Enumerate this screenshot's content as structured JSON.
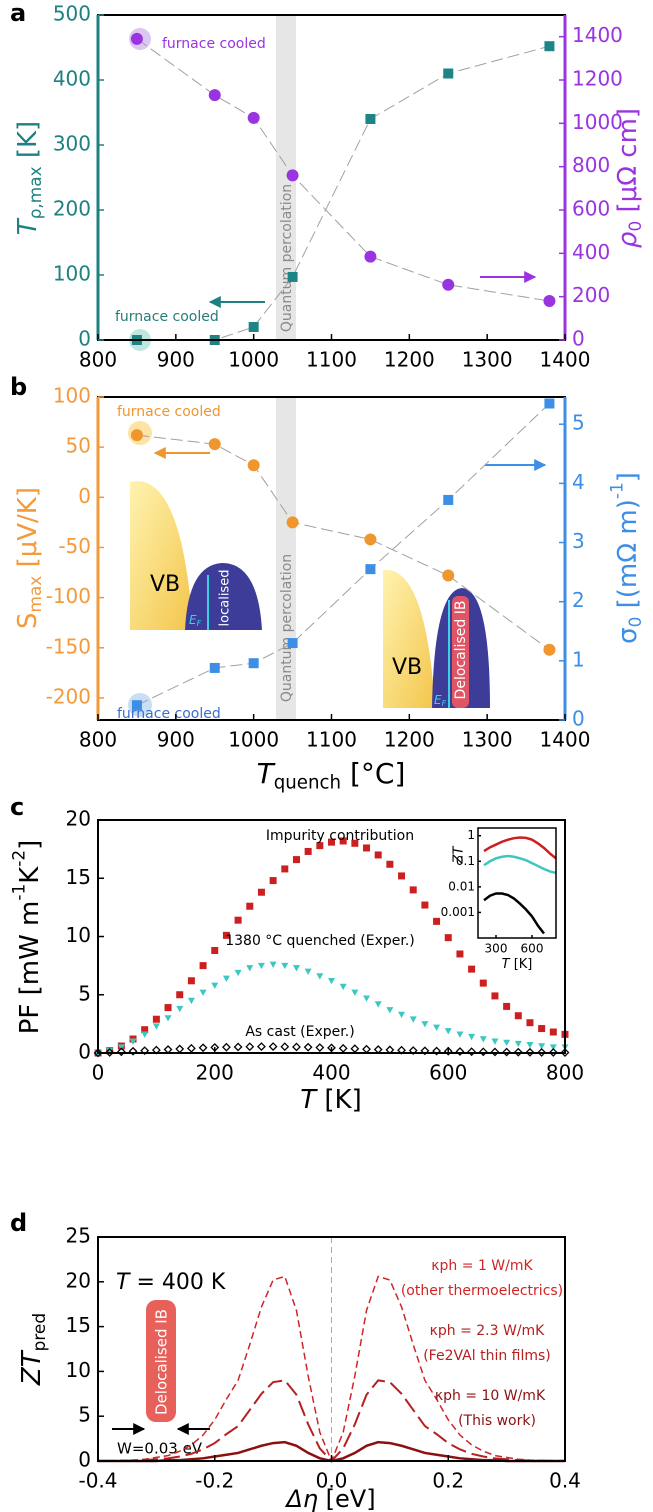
{
  "chart_data": [
    {
      "type": "line",
      "label": "a",
      "x": [
        850,
        950,
        1000,
        1050,
        1150,
        1250,
        1380
      ],
      "xlim": [
        800,
        1400
      ],
      "xticks": [
        800,
        900,
        1000,
        1100,
        1200,
        1300,
        1400
      ],
      "ylim": [
        0,
        500
      ],
      "yticks": [
        0,
        100,
        200,
        300,
        400,
        500
      ],
      "y2lim": [
        0,
        1500
      ],
      "y2ticks": [
        0,
        200,
        400,
        600,
        800,
        1000,
        1200,
        1400
      ],
      "ylabel": [
        "T",
        "ρ,max",
        " [K]"
      ],
      "y2label": [
        "ρ",
        "0",
        " [μΩ cm]"
      ],
      "yaxis_color": "#1e8080",
      "y2axis_color": "#9a34e0",
      "connector_color": "#a0a0a0",
      "series": [
        {
          "color": "#1e8585",
          "marker": "square",
          "values": [
            0,
            0,
            20,
            97,
            340,
            410,
            452
          ]
        },
        {
          "color": "#9a34e0",
          "marker": "circle",
          "axis": "y2",
          "values": [
            1390,
            1130,
            1025,
            760,
            385,
            255,
            180
          ]
        }
      ],
      "annotations": {
        "furnace_cooled_rho": "furnace cooled",
        "furnace_cooled_T": "furnace cooled",
        "percolation": "Quantum percolation"
      }
    },
    {
      "type": "line",
      "label": "b",
      "x": [
        850,
        950,
        1000,
        1050,
        1150,
        1250,
        1380
      ],
      "xlim": [
        800,
        1400
      ],
      "xticks": [
        800,
        900,
        1000,
        1100,
        1200,
        1300,
        1400
      ],
      "ylim": [
        -222,
        100
      ],
      "yticks": [
        -200,
        -150,
        -100,
        -50,
        0,
        50,
        100
      ],
      "y2lim": [
        0,
        5.46
      ],
      "y2ticks": [
        0,
        1,
        2,
        3,
        4,
        5
      ],
      "ylabel": [
        "S",
        "max",
        " [μV/K]"
      ],
      "y2label": [
        "σ",
        "0",
        " [(mΩ m)",
        "-1",
        "]"
      ],
      "xlabel": [
        "T",
        "quench",
        " [°C]"
      ],
      "yaxis_color": "#f39a3a",
      "y2axis_color": "#3c8ee6",
      "connector_color": "#a0a0a0",
      "series": [
        {
          "color": "#f0962f",
          "marker": "circle",
          "values": [
            62,
            53,
            32,
            -25,
            -42,
            -78,
            -152
          ]
        },
        {
          "color": "#3c8ee6",
          "marker": "square",
          "axis": "y2",
          "values": [
            0.25,
            0.88,
            0.96,
            1.3,
            2.55,
            3.72,
            5.35
          ]
        }
      ],
      "annotations": {
        "furnace_cooled_S": "furnace cooled",
        "furnace_cooled_sigma": "furnace cooled",
        "percolation": "Quantum percolation",
        "vb_left": "VB",
        "localised": "localised",
        "vb_right": "VB",
        "delocalised": "Delocalised IB",
        "fermi_level": [
          "E",
          "F"
        ]
      }
    },
    {
      "type": "scatter",
      "label": "c",
      "x": [
        0,
        20,
        40,
        60,
        80,
        100,
        120,
        140,
        160,
        180,
        200,
        220,
        240,
        260,
        280,
        300,
        320,
        340,
        360,
        380,
        400,
        420,
        440,
        460,
        480,
        500,
        520,
        540,
        560,
        580,
        600,
        620,
        640,
        660,
        680,
        700,
        720,
        740,
        760,
        780,
        800
      ],
      "xlim": [
        0,
        800
      ],
      "xticks": [
        0,
        200,
        400,
        600,
        800
      ],
      "ylim": [
        0,
        20
      ],
      "yticks": [
        0,
        5,
        10,
        15,
        20
      ],
      "xlabel": [
        "T",
        " [K]"
      ],
      "ylabel": [
        "PF [mW m",
        "-1",
        "K",
        "-2",
        "]"
      ],
      "series": [
        {
          "name": "Impurity contribution",
          "color": "#cc1f1f",
          "marker": "square",
          "values": [
            0.0,
            0.2,
            0.6,
            1.2,
            2.0,
            2.9,
            3.9,
            5.0,
            6.2,
            7.5,
            8.8,
            10.1,
            11.4,
            12.6,
            13.8,
            14.8,
            15.8,
            16.6,
            17.3,
            17.8,
            18.1,
            18.2,
            18.0,
            17.6,
            17.0,
            16.2,
            15.2,
            14.0,
            12.7,
            11.3,
            9.9,
            8.5,
            7.2,
            6.0,
            4.9,
            4.0,
            3.2,
            2.6,
            2.1,
            1.8,
            1.6
          ]
        },
        {
          "name": "1380 °C quenched (Exper.)",
          "color": "#3cc8c0",
          "marker": "triangle",
          "values": [
            0,
            0.2,
            0.5,
            1.0,
            1.6,
            2.3,
            3.0,
            3.8,
            4.5,
            5.2,
            5.8,
            6.4,
            6.9,
            7.3,
            7.5,
            7.6,
            7.5,
            7.3,
            7.0,
            6.6,
            6.2,
            5.7,
            5.2,
            4.7,
            4.2,
            3.7,
            3.3,
            2.9,
            2.5,
            2.2,
            1.9,
            1.6,
            1.4,
            1.2,
            1.0,
            0.9,
            0.8,
            0.7,
            0.6,
            0.5,
            0.5
          ]
        },
        {
          "name": "As cast (Exper.)",
          "color": "#000000",
          "marker": "diamond",
          "values": [
            0,
            0.05,
            0.1,
            0.15,
            0.2,
            0.25,
            0.3,
            0.35,
            0.4,
            0.45,
            0.48,
            0.5,
            0.52,
            0.54,
            0.55,
            0.55,
            0.54,
            0.52,
            0.5,
            0.47,
            0.44,
            0.4,
            0.37,
            0.33,
            0.3,
            0.27,
            0.24,
            0.21,
            0.19,
            0.17,
            0.15,
            0.13,
            0.11,
            0.1,
            0.09,
            0.08,
            0.07,
            0.06,
            0.05,
            0.05,
            0.04
          ]
        }
      ]
    },
    {
      "type": "line",
      "x": [
        200,
        250,
        300,
        350,
        400,
        450,
        500,
        550,
        600,
        650,
        700,
        750,
        800
      ],
      "xlim": [
        150,
        800
      ],
      "xticks": [
        300,
        600
      ],
      "ylim": [
        0.0001,
        2
      ],
      "yticks": [
        0.001,
        0.01,
        0.1,
        1
      ],
      "ylog": true,
      "ylabel": "ZT",
      "xlabel": [
        "T",
        " [K]"
      ],
      "series": [
        {
          "color": "#cc1f1f",
          "linestyle": "solid",
          "values": [
            0.25,
            0.35,
            0.45,
            0.58,
            0.7,
            0.8,
            0.85,
            0.82,
            0.7,
            0.5,
            0.33,
            0.2,
            0.13
          ]
        },
        {
          "color": "#3cc8c0",
          "linestyle": "solid",
          "values": [
            0.07,
            0.1,
            0.13,
            0.15,
            0.16,
            0.15,
            0.13,
            0.11,
            0.085,
            0.065,
            0.05,
            0.04,
            0.035
          ]
        },
        {
          "color": "#000000",
          "linestyle": "solid",
          "values": [
            0.003,
            0.0045,
            0.0055,
            0.0055,
            0.0048,
            0.0035,
            0.0022,
            0.0013,
            0.0007,
            0.0003,
            0.00015,
            null,
            null
          ]
        }
      ]
    },
    {
      "type": "line",
      "label": "d",
      "x": [
        -0.4,
        -0.38,
        -0.36,
        -0.34,
        -0.32,
        -0.3,
        -0.28,
        -0.26,
        -0.24,
        -0.22,
        -0.2,
        -0.18,
        -0.16,
        -0.14,
        -0.12,
        -0.1,
        -0.08,
        -0.06,
        -0.04,
        -0.02,
        0,
        0.02,
        0.04,
        0.06,
        0.08,
        0.1,
        0.12,
        0.14,
        0.16,
        0.18,
        0.2,
        0.22,
        0.24,
        0.26,
        0.28,
        0.3,
        0.32,
        0.34,
        0.36,
        0.38,
        0.4
      ],
      "xlim": [
        -0.4,
        0.4
      ],
      "xticks": [
        -0.4,
        -0.2,
        {
          "value": 0,
          "label": "0.0"
        },
        0.2,
        0.4
      ],
      "ylim": [
        0,
        25
      ],
      "yticks": [
        0,
        5,
        10,
        15,
        20,
        25
      ],
      "xlabel": [
        "Δη",
        " [eV]"
      ],
      "ylabel": [
        "ZT",
        "pred"
      ],
      "zero_line": true,
      "series": [
        {
          "name": "κph = 1 W/mK",
          "note": "(other thermoelectrics)",
          "color": "#d02525",
          "linestyle": "dashed",
          "values": [
            0.02,
            0.03,
            0.06,
            0.1,
            0.2,
            0.4,
            0.6,
            1.1,
            1.8,
            2.9,
            4.6,
            6.9,
            9.0,
            13.0,
            17.2,
            20.2,
            20.6,
            16.8,
            9.5,
            3.2,
            0,
            3.2,
            9.5,
            16.8,
            20.6,
            20.2,
            17.2,
            13.0,
            9.0,
            6.9,
            4.6,
            2.9,
            1.8,
            1.1,
            0.6,
            0.4,
            0.2,
            0.1,
            0.06,
            0.03,
            0.02
          ]
        },
        {
          "name": "κph = 2.3 W/mK",
          "note": "(Fe2VAl thin films)",
          "color": "#b52020",
          "linestyle": "longdash",
          "values": [
            0.01,
            0.01,
            0.03,
            0.05,
            0.1,
            0.2,
            0.3,
            0.5,
            0.8,
            1.3,
            2.0,
            3.0,
            3.9,
            5.7,
            7.5,
            8.8,
            9.0,
            7.4,
            4.1,
            1.4,
            0,
            1.4,
            4.1,
            7.4,
            9.0,
            8.8,
            7.5,
            5.7,
            3.9,
            3.0,
            2.0,
            1.3,
            0.8,
            0.5,
            0.3,
            0.2,
            0.1,
            0.05,
            0.03,
            0.01,
            0.01
          ]
        },
        {
          "name": "κph = 10 W/mK",
          "note": "(This work)",
          "color": "#8c1010",
          "linestyle": "solid",
          "values": [
            0,
            0,
            0,
            0,
            0,
            0,
            0.1,
            0.1,
            0.2,
            0.3,
            0.5,
            0.7,
            0.9,
            1.3,
            1.7,
            2.0,
            2.1,
            1.7,
            0.9,
            0.3,
            0,
            0.3,
            0.9,
            1.7,
            2.1,
            2.0,
            1.7,
            1.3,
            0.9,
            0.7,
            0.5,
            0.3,
            0.2,
            0.1,
            0.1,
            0,
            0,
            0,
            0,
            0,
            0
          ]
        }
      ],
      "annotations": {
        "temperature": [
          "T",
          " = 400 K"
        ],
        "band": "Delocalised IB",
        "width": "W=0.03 eV"
      }
    }
  ]
}
